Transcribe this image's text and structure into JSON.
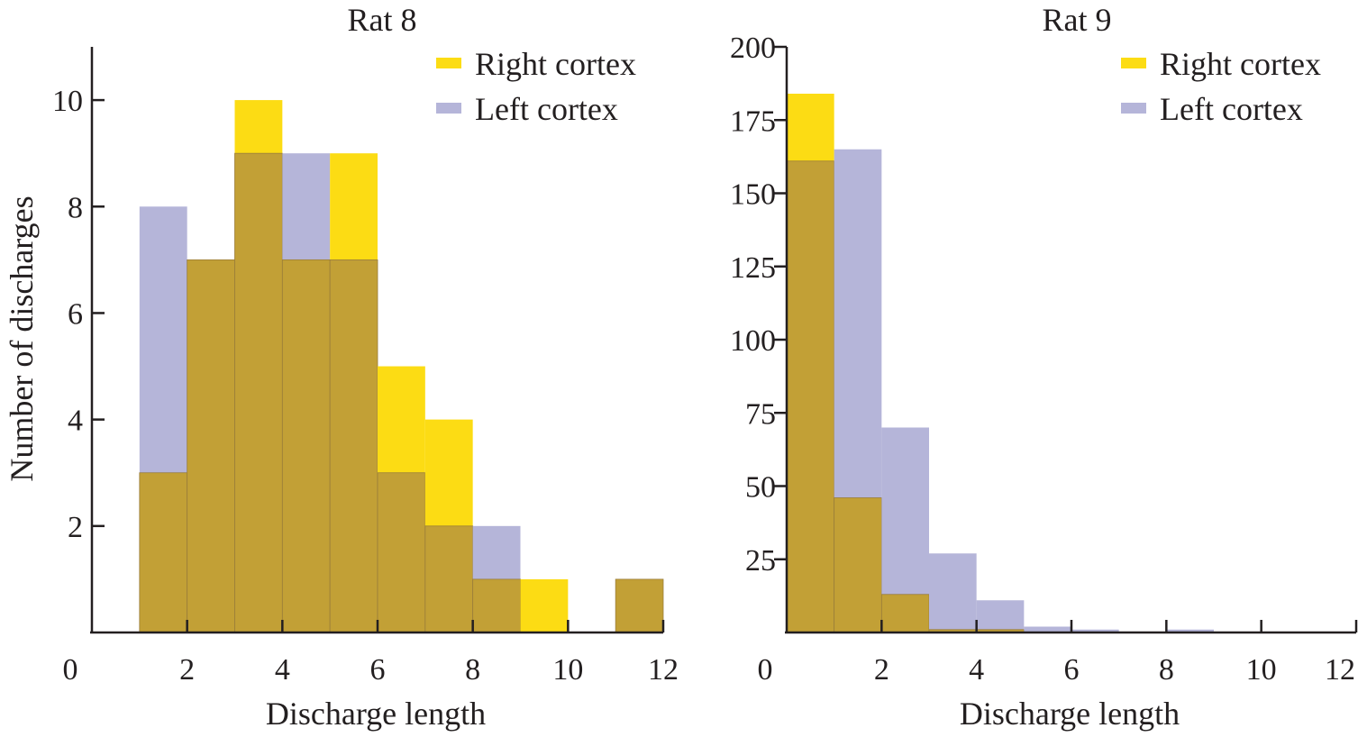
{
  "colors": {
    "right_cortex": "#FCDC14",
    "left_cortex": "#B5B5D9",
    "overlap": "#C2A036",
    "axis": "#231F20"
  },
  "chart_data": [
    {
      "type": "bar",
      "title": "Rat 8",
      "xlabel": "Discharge length",
      "ylabel": "Number of discharges",
      "xlim": [
        0,
        12
      ],
      "ylim": [
        0,
        11
      ],
      "xticks": [
        "0",
        "2",
        "4",
        "6",
        "8",
        "10",
        "12"
      ],
      "yticks": [
        "2",
        "4",
        "6",
        "8",
        "10"
      ],
      "bin_edges": [
        1,
        2,
        3,
        4,
        5,
        6,
        7,
        8,
        9,
        10,
        11,
        12
      ],
      "series": [
        {
          "name": "Right cortex",
          "values": [
            3,
            7,
            10,
            7,
            9,
            5,
            4,
            1,
            1,
            0,
            1
          ]
        },
        {
          "name": "Left cortex",
          "values": [
            8,
            7,
            9,
            9,
            7,
            3,
            2,
            2,
            0,
            0,
            1
          ]
        }
      ],
      "legend": "top-right",
      "grid": false
    },
    {
      "type": "bar",
      "title": "Rat 9",
      "xlabel": "Discharge length",
      "ylabel": "",
      "xlim": [
        0,
        12
      ],
      "ylim": [
        0,
        200
      ],
      "xticks": [
        "0",
        "2",
        "4",
        "6",
        "8",
        "10",
        "12"
      ],
      "yticks": [
        "25",
        "50",
        "75",
        "100",
        "125",
        "150",
        "175",
        "200"
      ],
      "bin_edges": [
        0,
        1,
        2,
        3,
        4,
        5,
        6,
        7,
        8,
        9
      ],
      "series": [
        {
          "name": "Right cortex",
          "values": [
            184,
            46,
            13,
            1,
            1,
            0,
            0,
            0,
            0
          ]
        },
        {
          "name": "Left cortex",
          "values": [
            161,
            165,
            70,
            27,
            11,
            2,
            1,
            0,
            1
          ]
        }
      ],
      "legend": "top-right",
      "grid": false
    }
  ]
}
